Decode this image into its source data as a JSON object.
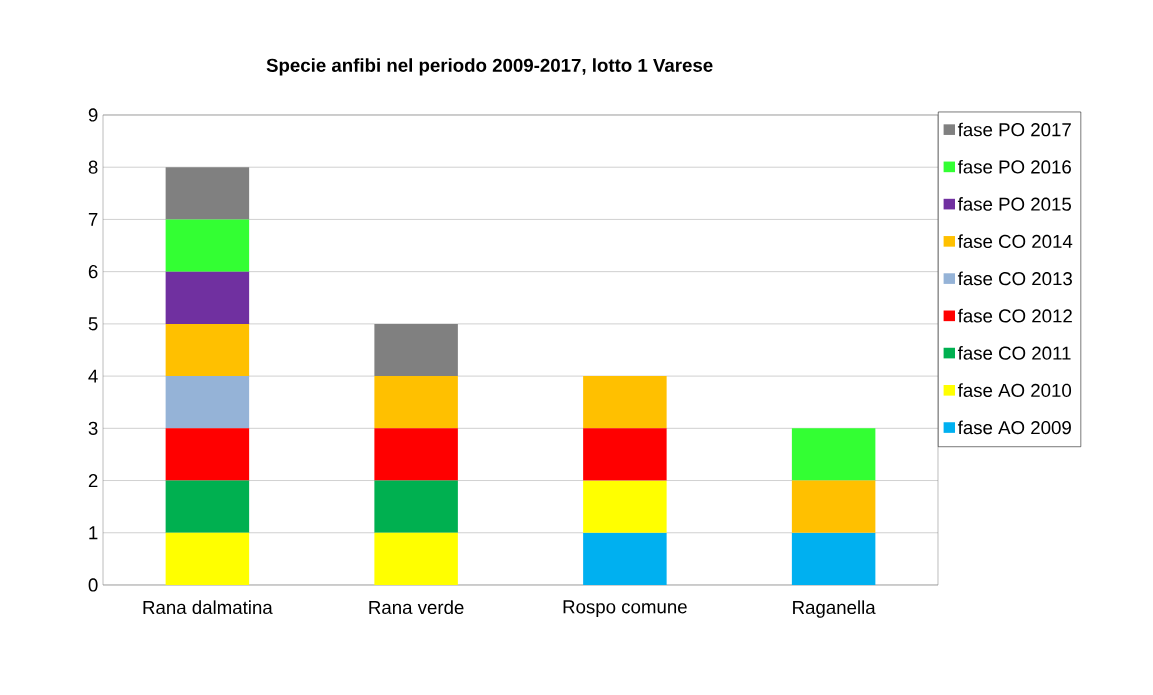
{
  "chart_data": {
    "type": "bar",
    "stacked": true,
    "title": "Specie anfibi nel periodo 2009-2017, lotto 1 Varese",
    "categories": [
      "Rana dalmatina",
      "Rana verde",
      "Rospo comune",
      "Raganella"
    ],
    "series": [
      {
        "name": "fase AO 2009",
        "color": "#00b0f0",
        "values": [
          0,
          0,
          1,
          1
        ]
      },
      {
        "name": "fase AO 2010",
        "color": "#ffff00",
        "values": [
          1,
          1,
          1,
          0
        ]
      },
      {
        "name": "fase CO 2011",
        "color": "#00b050",
        "values": [
          1,
          1,
          0,
          0
        ]
      },
      {
        "name": "fase CO 2012",
        "color": "#ff0000",
        "values": [
          1,
          1,
          1,
          0
        ]
      },
      {
        "name": "fase CO 2013",
        "color": "#95b3d7",
        "values": [
          1,
          0,
          0,
          0
        ]
      },
      {
        "name": "fase CO 2014",
        "color": "#ffc000",
        "values": [
          1,
          1,
          1,
          1
        ]
      },
      {
        "name": "fase PO 2015",
        "color": "#7030a0",
        "values": [
          1,
          0,
          0,
          0
        ]
      },
      {
        "name": "fase PO 2016",
        "color": "#33ff33",
        "values": [
          1,
          0,
          0,
          1
        ]
      },
      {
        "name": "fase PO 2017",
        "color": "#808080",
        "values": [
          1,
          1,
          0,
          0
        ]
      }
    ],
    "ylim": [
      0,
      9
    ],
    "yticks": [
      0,
      1,
      2,
      3,
      4,
      5,
      6,
      7,
      8,
      9
    ],
    "grid": "y",
    "legend": "right"
  }
}
